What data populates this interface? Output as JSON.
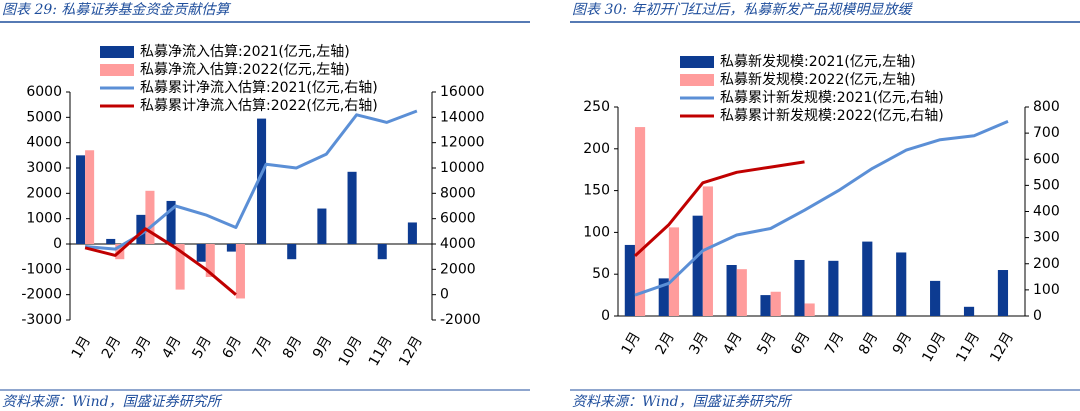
{
  "chart_data": [
    {
      "type": "bar_line",
      "title": "图表 29:  私募证券基金资金贡献估算",
      "source": "资料来源：Wind，国盛证券研究所",
      "categories": [
        "1月",
        "2月",
        "3月",
        "4月",
        "5月",
        "6月",
        "7月",
        "8月",
        "9月",
        "10月",
        "11月",
        "12月"
      ],
      "ylim": [
        -3000,
        6000
      ],
      "yticks": [
        -3000,
        -2000,
        -1000,
        0,
        1000,
        2000,
        3000,
        4000,
        5000,
        6000
      ],
      "y2lim": [
        -2000,
        16000
      ],
      "y2ticks": [
        -2000,
        0,
        2000,
        4000,
        6000,
        8000,
        10000,
        12000,
        14000,
        16000
      ],
      "series": [
        {
          "name": "私募净流入估算:2021(亿元,左轴)",
          "type": "bar",
          "color": "#0d3b91",
          "values": [
            3500,
            200,
            1150,
            1700,
            -700,
            -300,
            4950,
            -600,
            1400,
            2850,
            -600,
            850
          ]
        },
        {
          "name": "私募净流入估算:2022(亿元,左轴)",
          "type": "bar",
          "color": "#ff9c9c",
          "values": [
            3700,
            -600,
            2100,
            -1800,
            -1300,
            -2150,
            null,
            null,
            null,
            null,
            null,
            null
          ]
        },
        {
          "name": "私募累计净流入估算:2021(亿元,右轴)",
          "type": "line",
          "axis": "y2",
          "color": "#5b8fd6",
          "values": [
            3800,
            3600,
            5000,
            7000,
            6300,
            5300,
            10300,
            10000,
            11100,
            14200,
            13600,
            14500
          ]
        },
        {
          "name": "私募累计净流入估算:2022(亿元,右轴)",
          "type": "line",
          "axis": "y2",
          "color": "#c00000",
          "values": [
            3700,
            3100,
            5200,
            3700,
            2000,
            0,
            null,
            null,
            null,
            null,
            null,
            null
          ]
        }
      ]
    },
    {
      "type": "bar_line",
      "title": "图表 30:  年初开门红过后，私募新发产品规模明显放缓",
      "source": "资料来源：Wind，国盛证券研究所",
      "categories": [
        "1月",
        "2月",
        "3月",
        "4月",
        "5月",
        "6月",
        "7月",
        "8月",
        "9月",
        "10月",
        "11月",
        "12月"
      ],
      "ylim": [
        0,
        250
      ],
      "yticks": [
        0,
        50,
        100,
        150,
        200,
        250
      ],
      "y2lim": [
        0,
        800
      ],
      "y2ticks": [
        0,
        100,
        200,
        300,
        400,
        500,
        600,
        700,
        800
      ],
      "series": [
        {
          "name": "私募新发规模:2021(亿元,左轴)",
          "type": "bar",
          "color": "#0d3b91",
          "values": [
            85,
            45,
            120,
            61,
            25,
            67,
            66,
            89,
            76,
            42,
            11,
            55
          ]
        },
        {
          "name": "私募新发规模:2022(亿元,左轴)",
          "type": "bar",
          "color": "#ff9c9c",
          "values": [
            226,
            106,
            155,
            56,
            29,
            15,
            null,
            null,
            null,
            null,
            null,
            null
          ]
        },
        {
          "name": "私募累计新发规模:2021(亿元,右轴)",
          "type": "line",
          "axis": "y2",
          "color": "#5b8fd6",
          "values": [
            80,
            125,
            250,
            310,
            335,
            405,
            480,
            565,
            635,
            675,
            690,
            745
          ]
        },
        {
          "name": "私募累计新发规模:2022(亿元,右轴)",
          "type": "line",
          "axis": "y2",
          "color": "#c00000",
          "values": [
            230,
            350,
            510,
            550,
            570,
            590,
            null,
            null,
            null,
            null,
            null,
            null
          ]
        }
      ]
    }
  ]
}
